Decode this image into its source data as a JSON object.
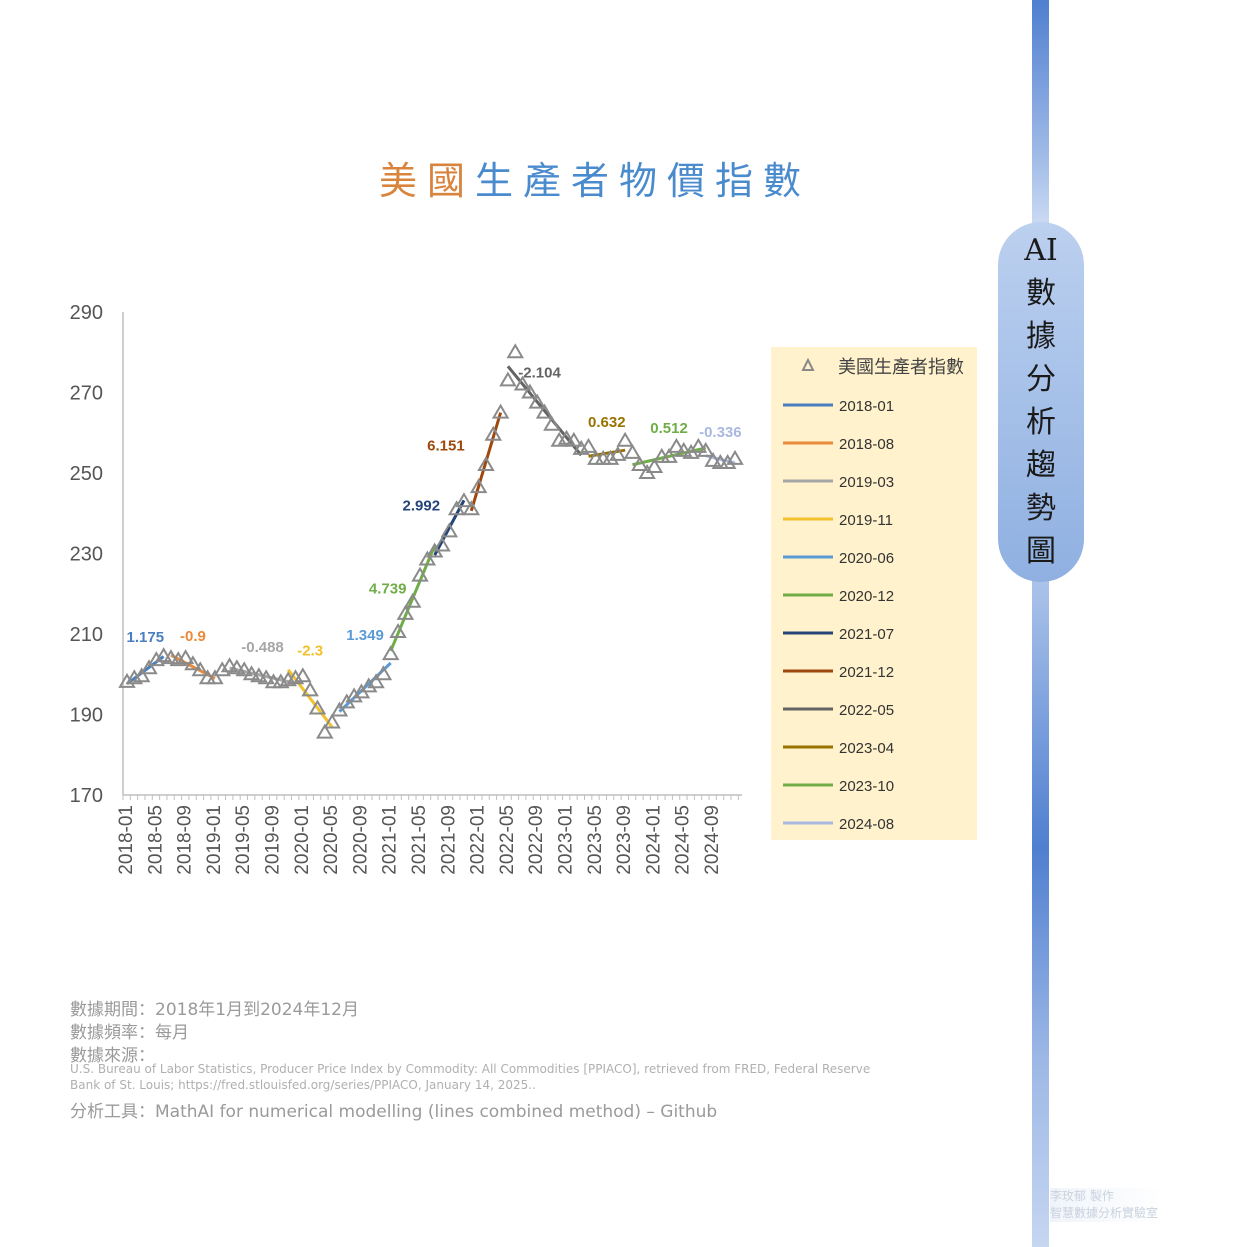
{
  "title": {
    "part1": "美國",
    "part2": "生產者物價指數"
  },
  "side_label_chars": [
    "AI",
    "數",
    "據",
    "分",
    "析",
    "趨",
    "勢",
    "圖"
  ],
  "footer": {
    "period": "數據期間：2018年1月到2024年12月",
    "frequency": "數據頻率：每月",
    "source_label": "數據來源：",
    "source_line1": "U.S. Bureau of Labor Statistics, Producer Price Index by Commodity: All Commodities [PPIACO], retrieved from FRED, Federal Reserve",
    "source_line2": "Bank of St. Louis; https://fred.stlouisfed.org/series/PPIACO, January 14, 2025..",
    "tool": "分析工具：MathAI for numerical modelling (lines combined method) – Github"
  },
  "credit": {
    "line1": "李玫郁 製作",
    "line2": "智慧數據分析實驗室"
  },
  "chart_data": {
    "type": "scatter",
    "ylim": [
      170,
      290
    ],
    "yticks": [
      170,
      190,
      210,
      230,
      250,
      270,
      290
    ],
    "xlabels": [
      "2018-01",
      "2018-05",
      "2018-09",
      "2019-01",
      "2019-05",
      "2019-09",
      "2020-01",
      "2020-05",
      "2020-09",
      "2021-01",
      "2021-05",
      "2021-09",
      "2022-01",
      "2022-05",
      "2022-09",
      "2023-01",
      "2023-05",
      "2023-09",
      "2024-01",
      "2024-05",
      "2024-09"
    ],
    "scatter_series": {
      "name": "美國生產者指數",
      "color": "#8a8a8a",
      "values": [
        198.1,
        199.0,
        199.5,
        201.5,
        203.5,
        204.5,
        204.0,
        203.5,
        204.0,
        202.5,
        201.0,
        199.0,
        199.0,
        201.0,
        202.0,
        201.5,
        201.0,
        200.0,
        199.5,
        199.0,
        198.0,
        198.0,
        198.5,
        199.0,
        199.5,
        196.0,
        191.5,
        185.5,
        188.0,
        191.0,
        193.0,
        194.5,
        195.5,
        197.0,
        198.0,
        200.0,
        205.0,
        210.5,
        215.0,
        218.0,
        224.5,
        228.5,
        230.5,
        232.0,
        235.5,
        241.0,
        243.0,
        241.0,
        246.5,
        252.0,
        259.5,
        265.0,
        273.0,
        280.0,
        272.0,
        270.0,
        267.5,
        265.0,
        262.0,
        258.0,
        258.5,
        258.0,
        256.0,
        256.5,
        253.5,
        253.5,
        253.5,
        254.5,
        258.0,
        255.0,
        252.0,
        250.0,
        251.5,
        254.0,
        254.0,
        256.5,
        255.5,
        255.0,
        256.5,
        255.5,
        253.0,
        252.5,
        252.5,
        253.5
      ]
    },
    "segments": [
      {
        "name": "2018-01",
        "color": "#4a7ec2",
        "slope_label": "1.175",
        "start": 0,
        "end": 5
      },
      {
        "name": "2018-08",
        "color": "#e98b3a",
        "slope_label": "-0.9",
        "start": 6,
        "end": 12
      },
      {
        "name": "2019-03",
        "color": "#a6a6a6",
        "slope_label": "-0.488",
        "start": 14,
        "end": 23
      },
      {
        "name": "2019-11",
        "color": "#f2c12e",
        "slope_label": "-2.3",
        "start": 22,
        "end": 28
      },
      {
        "name": "2020-06",
        "color": "#5b9bd5",
        "slope_label": "1.349",
        "start": 29,
        "end": 36
      },
      {
        "name": "2020-12",
        "color": "#70ad47",
        "slope_label": "4.739",
        "start": 36,
        "end": 42
      },
      {
        "name": "2021-07",
        "color": "#264478",
        "slope_label": "2.992",
        "start": 42,
        "end": 46
      },
      {
        "name": "2021-12",
        "color": "#9e480e",
        "slope_label": "6.151",
        "start": 47,
        "end": 51
      },
      {
        "name": "2022-05",
        "color": "#636363",
        "slope_label": "-2.104",
        "start": 52,
        "end": 62
      },
      {
        "name": "2023-04",
        "color": "#997300",
        "slope_label": "0.632",
        "start": 63,
        "end": 68
      },
      {
        "name": "2023-10",
        "color": "#70ad47",
        "slope_label": "0.512",
        "start": 69,
        "end": 79
      },
      {
        "name": "2024-08",
        "color": "#a9b8e0",
        "slope_label": "-0.336",
        "start": 79,
        "end": 83
      }
    ],
    "legend_position": "right"
  }
}
